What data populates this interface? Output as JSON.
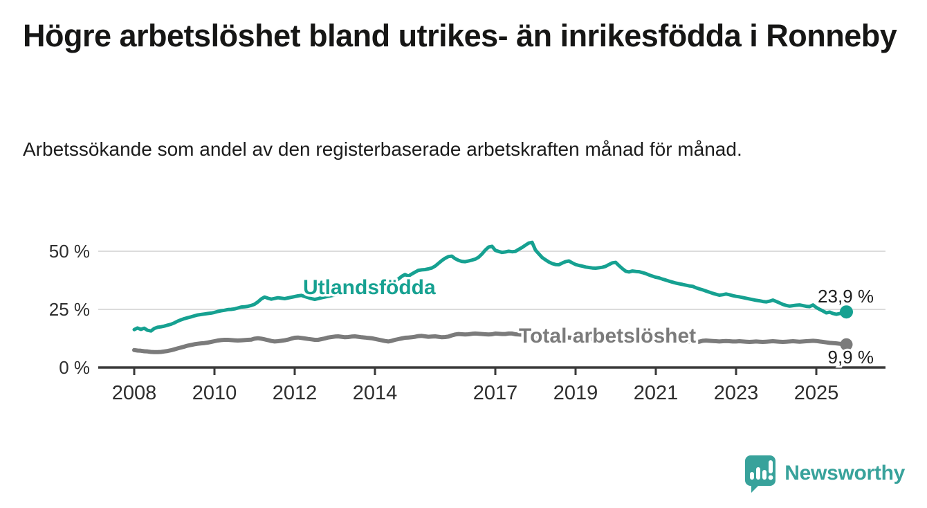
{
  "header": {
    "title": "Högre arbetslöshet bland utrikes- än inrikesfödda i Ronneby",
    "subtitle": "Arbetssökande som andel av den registerbaserade arbetskraften månad för månad."
  },
  "chart_data": {
    "type": "line",
    "title": "Högre arbetslöshet bland utrikes- än inrikesfödda i Ronneby",
    "subtitle": "Arbetssökande som andel av den registerbaserade arbetskraften månad för månad.",
    "unit": "%",
    "x_start_year": 2008,
    "points_per_year": 12,
    "x_tick_years": [
      2008,
      2010,
      2012,
      2014,
      2017,
      2019,
      2021,
      2023,
      2025
    ],
    "x_tick_labels": [
      "2008",
      "2010",
      "2012",
      "2014",
      "2017",
      "2019",
      "2021",
      "2023",
      "2025"
    ],
    "y_ticks": [
      {
        "value": 0,
        "label": "0 %"
      },
      {
        "value": 25,
        "label": "25 %"
      },
      {
        "value": 50,
        "label": "50 %"
      }
    ],
    "ylim": [
      0,
      56
    ],
    "grid": "horizontal",
    "series": [
      {
        "name": "Utlandsfödda",
        "color": "#16a191",
        "end_label": "23,9 %",
        "end_value": 23.9,
        "values": [
          16.3,
          17.0,
          16.4,
          16.9,
          16.0,
          15.7,
          16.8,
          17.3,
          17.5,
          17.8,
          18.2,
          18.6,
          19.2,
          19.9,
          20.5,
          21.0,
          21.4,
          21.8,
          22.2,
          22.6,
          22.8,
          23.0,
          23.2,
          23.4,
          23.7,
          24.1,
          24.4,
          24.6,
          24.9,
          25.0,
          25.2,
          25.6,
          26.0,
          26.1,
          26.3,
          26.7,
          27.2,
          28.2,
          29.5,
          30.3,
          29.8,
          29.4,
          29.7,
          30.0,
          29.8,
          29.6,
          29.9,
          30.2,
          30.5,
          30.8,
          31.0,
          30.5,
          30.1,
          29.6,
          29.3,
          29.6,
          30.0,
          30.3,
          30.6,
          30.9,
          31.2,
          31.5,
          31.8,
          32.1,
          32.4,
          32.7,
          33.0,
          33.4,
          33.8,
          34.2,
          34.6,
          34.8,
          35.0,
          35.4,
          35.8,
          36.2,
          36.6,
          37.1,
          37.6,
          38.0,
          39.2,
          40.0,
          39.3,
          40.2,
          41.0,
          41.8,
          42.0,
          42.1,
          42.4,
          42.8,
          43.6,
          44.8,
          46.0,
          47.0,
          47.7,
          47.9,
          46.8,
          46.1,
          45.6,
          45.5,
          45.8,
          46.2,
          46.6,
          47.4,
          48.8,
          50.5,
          51.8,
          52.1,
          50.4,
          49.9,
          49.5,
          49.7,
          50.0,
          49.8,
          49.9,
          50.8,
          51.6,
          52.6,
          53.5,
          53.8,
          50.5,
          48.9,
          47.3,
          46.3,
          45.4,
          44.7,
          44.3,
          44.2,
          44.9,
          45.5,
          45.8,
          45.0,
          44.3,
          43.9,
          43.6,
          43.2,
          43.0,
          42.8,
          42.7,
          42.9,
          43.1,
          43.5,
          44.3,
          45.0,
          45.2,
          43.8,
          42.5,
          41.4,
          41.1,
          41.5,
          41.3,
          41.2,
          40.8,
          40.4,
          39.8,
          39.3,
          38.8,
          38.5,
          38.0,
          37.6,
          37.1,
          36.7,
          36.3,
          36.0,
          35.7,
          35.4,
          35.1,
          34.9,
          34.3,
          33.8,
          33.4,
          32.9,
          32.4,
          31.9,
          31.5,
          31.1,
          31.3,
          31.6,
          31.3,
          30.9,
          30.6,
          30.4,
          30.1,
          29.8,
          29.5,
          29.2,
          28.9,
          28.7,
          28.4,
          28.2,
          28.5,
          29.0,
          28.4,
          27.8,
          27.1,
          26.7,
          26.4,
          26.6,
          26.8,
          26.9,
          26.6,
          26.3,
          26.2,
          26.9,
          25.8,
          25.0,
          24.3,
          23.5,
          23.8,
          23.2,
          22.9,
          23.2,
          23.5,
          23.9
        ]
      },
      {
        "name": "Total arbetslöshet",
        "color": "#7b7b7b",
        "end_label": "9,9 %",
        "end_value": 9.9,
        "values": [
          7.5,
          7.3,
          7.2,
          7.0,
          6.9,
          6.7,
          6.6,
          6.6,
          6.7,
          6.9,
          7.1,
          7.4,
          7.8,
          8.2,
          8.6,
          9.0,
          9.4,
          9.7,
          10.0,
          10.2,
          10.4,
          10.5,
          10.7,
          11.0,
          11.3,
          11.6,
          11.8,
          11.9,
          11.9,
          11.8,
          11.7,
          11.6,
          11.7,
          11.8,
          11.9,
          12.0,
          12.4,
          12.6,
          12.4,
          12.1,
          11.8,
          11.4,
          11.2,
          11.3,
          11.5,
          11.7,
          12.0,
          12.4,
          12.8,
          12.9,
          12.7,
          12.5,
          12.3,
          12.1,
          11.9,
          11.9,
          12.2,
          12.5,
          12.9,
          13.1,
          13.3,
          13.4,
          13.2,
          13.0,
          13.1,
          13.3,
          13.4,
          13.2,
          13.0,
          12.9,
          12.7,
          12.6,
          12.3,
          12.0,
          11.7,
          11.4,
          11.2,
          11.5,
          11.9,
          12.2,
          12.5,
          12.8,
          12.9,
          13.0,
          13.2,
          13.5,
          13.6,
          13.4,
          13.2,
          13.3,
          13.4,
          13.2,
          13.0,
          13.1,
          13.3,
          13.8,
          14.2,
          14.4,
          14.3,
          14.2,
          14.3,
          14.5,
          14.6,
          14.5,
          14.4,
          14.3,
          14.2,
          14.3,
          14.6,
          14.5,
          14.4,
          14.4,
          14.6,
          14.6,
          14.3,
          14.2,
          14.1,
          14.0,
          13.9,
          13.8,
          13.6,
          13.4,
          13.2,
          13.1,
          13.0,
          12.9,
          12.8,
          12.8,
          12.9,
          13.0,
          12.9,
          12.8,
          12.7,
          12.6,
          12.5,
          12.4,
          12.3,
          12.3,
          12.2,
          12.3,
          12.4,
          12.6,
          12.8,
          13.0,
          13.2,
          13.0,
          12.8,
          12.7,
          12.8,
          12.9,
          12.8,
          12.7,
          12.5,
          12.3,
          12.1,
          12.0,
          11.9,
          11.8,
          11.7,
          11.6,
          11.5,
          11.5,
          11.4,
          11.4,
          11.3,
          11.3,
          11.2,
          11.2,
          11.1,
          11.1,
          11.5,
          11.6,
          11.5,
          11.4,
          11.3,
          11.2,
          11.3,
          11.4,
          11.3,
          11.2,
          11.2,
          11.3,
          11.2,
          11.1,
          11.0,
          11.1,
          11.2,
          11.1,
          11.0,
          11.1,
          11.2,
          11.3,
          11.2,
          11.1,
          11.0,
          11.1,
          11.2,
          11.3,
          11.2,
          11.1,
          11.2,
          11.3,
          11.4,
          11.5,
          11.4,
          11.2,
          11.0,
          10.8,
          10.6,
          10.5,
          10.4,
          10.2,
          10.0,
          9.9
        ]
      }
    ],
    "colors": {
      "axis_line": "#3a3a3a",
      "grid_line": "#dcdcdc",
      "tick_text": "#2e2e2e",
      "value_text": "#1d1d1d"
    },
    "legend_position": "inline-labels"
  },
  "footer": {
    "brand": "Newsworthy",
    "brand_color": "#38a29b",
    "logo_icon": "speech-bubble-bar-chart-icon"
  }
}
